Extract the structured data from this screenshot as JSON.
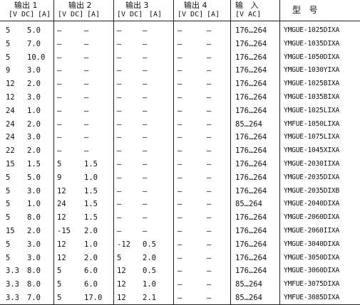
{
  "header": {
    "output1": {
      "title": "输出 1",
      "unit_v": "[V DC]",
      "unit_a": "[A]"
    },
    "output2": {
      "title": "输出 2",
      "unit_v": "[V DC]",
      "unit_a": "[A]"
    },
    "output3": {
      "title": "输出 3",
      "unit_v": "[V DC]",
      "unit_a": "[A]"
    },
    "output4": {
      "title": "输出 4",
      "unit_v": "[V DC]",
      "unit_a": "[A]"
    },
    "input": {
      "title": "输   入",
      "unit": "[V AC]"
    },
    "type": {
      "title": "型   号"
    }
  },
  "rows": [
    [
      "5",
      "5.0",
      "–",
      "–",
      "–",
      "–",
      "–",
      "–",
      "176…264",
      "YMGUE-1025DIXA"
    ],
    [
      "5",
      "7.0",
      "–",
      "–",
      "–",
      "–",
      "–",
      "–",
      "176…264",
      "YMGUE-1035DIXA"
    ],
    [
      "5",
      "10.0",
      "–",
      "–",
      "–",
      "–",
      "–",
      "–",
      "176…264",
      "YMGUE-1050DIXA"
    ],
    [
      "9",
      "3.0",
      "–",
      "–",
      "–",
      "–",
      "–",
      "–",
      "176…264",
      "YMGUE-1030YIXA"
    ],
    [
      "12",
      "2.0",
      "–",
      "–",
      "–",
      "–",
      "–",
      "–",
      "176…264",
      "YMGUE-1025BIXA"
    ],
    [
      "12",
      "3.0",
      "–",
      "–",
      "–",
      "–",
      "–",
      "–",
      "176…264",
      "YMGUE-1035BIXA"
    ],
    [
      "24",
      "1.0",
      "–",
      "–",
      "–",
      "–",
      "–",
      "–",
      "176…264",
      "YMGUE-1025LIXA"
    ],
    [
      "24",
      "2.0",
      "–",
      "–",
      "–",
      "–",
      "–",
      "–",
      "85…264",
      "YMFUE-1050LIXA"
    ],
    [
      "24",
      "3.0",
      "–",
      "–",
      "–",
      "–",
      "–",
      "–",
      "176…264",
      "YMGUE-1075LIXA"
    ],
    [
      "22",
      "2.0",
      "–",
      "–",
      "–",
      "–",
      "–",
      "–",
      "176…264",
      "YMGUE-1045XIXA"
    ],
    [
      "15",
      "1.5",
      "5",
      "1.5",
      "–",
      "–",
      "–",
      "–",
      "176…264",
      "YMGUE-2030IIXA"
    ],
    [
      "5",
      "5.0",
      "9",
      "1.0",
      "–",
      "–",
      "–",
      "–",
      "176…264",
      "YMGUE-2035DIXA"
    ],
    [
      "5",
      "3.0",
      "12",
      "1.5",
      "–",
      "–",
      "–",
      "–",
      "176…264",
      "YMGUE-2035DIXB"
    ],
    [
      "5",
      "1.0",
      "24",
      "1.5",
      "–",
      "–",
      "–",
      "–",
      "85…264",
      "YMGUE-2040DIXA"
    ],
    [
      "5",
      "8.0",
      "12",
      "1.5",
      "–",
      "–",
      "–",
      "–",
      "176…264",
      "YMGUE-2060DIXA"
    ],
    [
      "15",
      "2.0",
      "-15",
      "2.0",
      "–",
      "–",
      "–",
      "–",
      "176…264",
      "YMGUE-2060IIXA"
    ],
    [
      "5",
      "3.0",
      "12",
      "1.0",
      "-12",
      "0.5",
      "–",
      "–",
      "176…264",
      "YMGUE-3040DIXA"
    ],
    [
      "5",
      "3.0",
      "12",
      "2.0",
      "5",
      "2.0",
      "–",
      "–",
      "176…264",
      "YMGUE-3050DIXA"
    ],
    [
      "3.3",
      "8.0",
      "5",
      "6.0",
      "12",
      "0.5",
      "–",
      "–",
      "176…264",
      "YMGUE-3060DIXA"
    ],
    [
      "3.3",
      "8.0",
      "5",
      "6.0",
      "12",
      "1.0",
      "–",
      "–",
      "85…264",
      "YMFUE-3075DIXA"
    ],
    [
      "3.3",
      "7.0",
      "5",
      "17.0",
      "12",
      "2.1",
      "–",
      "–",
      "85…264",
      "YMFUE-3085DIXA"
    ]
  ]
}
